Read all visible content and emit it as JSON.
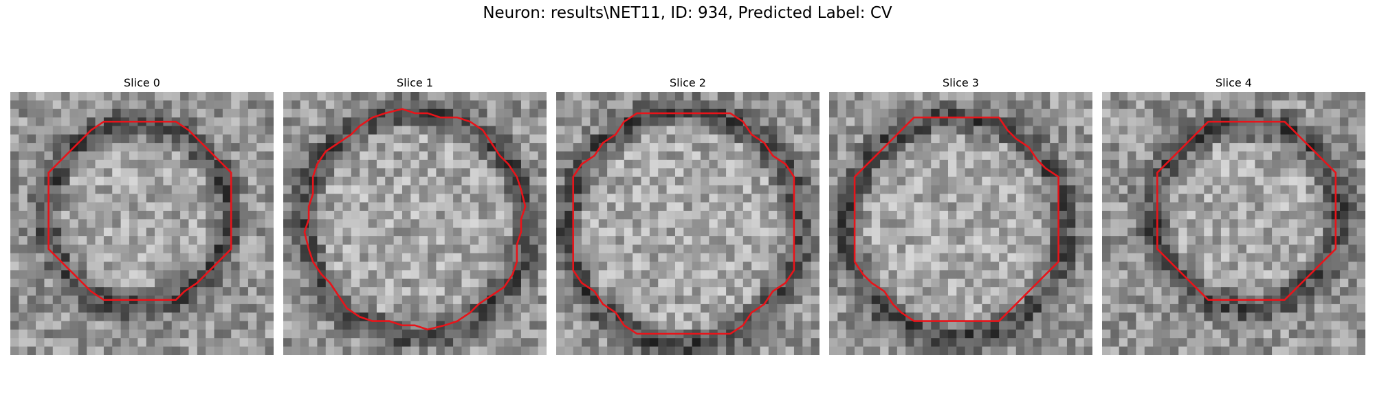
{
  "figure": {
    "title": "Neuron: results\\NET11, ID: 934, Predicted Label: CV"
  },
  "panels": [
    {
      "title": "Slice 0"
    },
    {
      "title": "Slice 1"
    },
    {
      "title": "Slice 2"
    },
    {
      "title": "Slice 3"
    },
    {
      "title": "Slice 4"
    }
  ],
  "colors": {
    "contour": "#e8141a",
    "background": "#ffffff"
  }
}
